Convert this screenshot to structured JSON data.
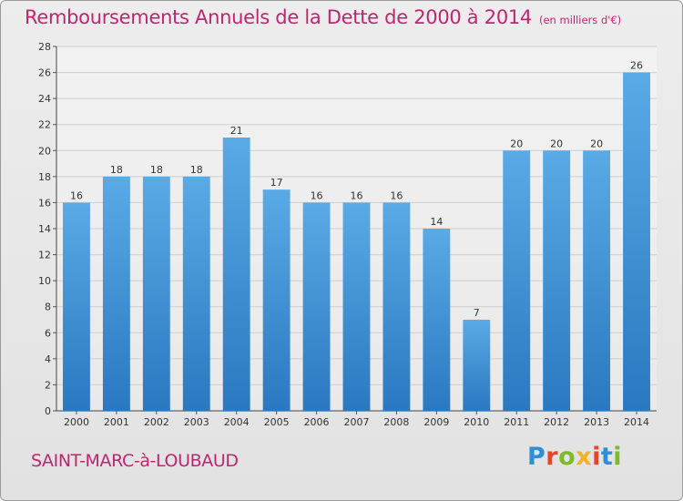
{
  "title": "Remboursements Annuels de la Dette de 2000 à 2014",
  "subtitle": "(en milliers d'€)",
  "place_name": "SAINT-MARC-à-LOUBAUD",
  "logo": {
    "text": "Proxiti",
    "letter_colors": [
      "#2f8fd3",
      "#e8442a",
      "#7dbb2a",
      "#f0b323",
      "#e8442a",
      "#2f8fd3",
      "#7dbb2a"
    ]
  },
  "colors": {
    "title": "#c0256f",
    "bar_light": "#5aaae6",
    "bar_dark": "#2a78c0",
    "grid": "#cfcfcf"
  },
  "chart_data": {
    "type": "bar",
    "categories": [
      "2000",
      "2001",
      "2002",
      "2003",
      "2004",
      "2005",
      "2006",
      "2007",
      "2008",
      "2009",
      "2010",
      "2011",
      "2012",
      "2013",
      "2014"
    ],
    "values": [
      16,
      18,
      18,
      18,
      21,
      17,
      16,
      16,
      16,
      14,
      7,
      20,
      20,
      20,
      26
    ],
    "ylim": [
      0,
      28
    ],
    "yticks": [
      0,
      2,
      4,
      6,
      8,
      10,
      12,
      14,
      16,
      18,
      20,
      22,
      24,
      26,
      28
    ],
    "xlabel": "",
    "ylabel": "",
    "grid": true,
    "data_labels": true
  }
}
